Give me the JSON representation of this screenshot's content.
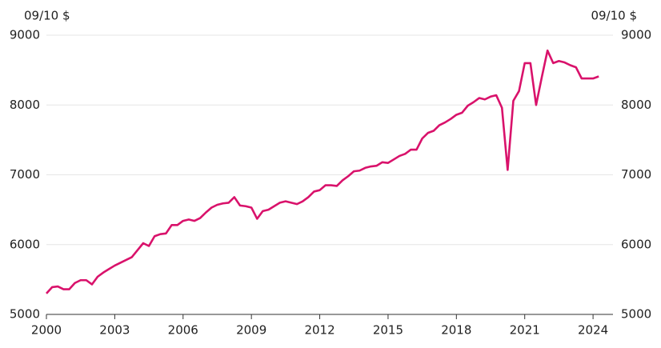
{
  "chart_data": {
    "type": "line",
    "ylabel": "09/10 $",
    "y2label": "09/10 $",
    "x": [
      2000,
      2000.25,
      2000.5,
      2000.75,
      2001,
      2001.25,
      2001.5,
      2001.75,
      2002,
      2002.25,
      2002.5,
      2002.75,
      2003,
      2003.25,
      2003.5,
      2003.75,
      2004,
      2004.25,
      2004.5,
      2004.75,
      2005,
      2005.25,
      2005.5,
      2005.75,
      2006,
      2006.25,
      2006.5,
      2006.75,
      2007,
      2007.25,
      2007.5,
      2007.75,
      2008,
      2008.25,
      2008.5,
      2008.75,
      2009,
      2009.25,
      2009.5,
      2009.75,
      2010,
      2010.25,
      2010.5,
      2010.75,
      2011,
      2011.25,
      2011.5,
      2011.75,
      2012,
      2012.25,
      2012.5,
      2012.75,
      2013,
      2013.25,
      2013.5,
      2013.75,
      2014,
      2014.25,
      2014.5,
      2014.75,
      2015,
      2015.25,
      2015.5,
      2015.75,
      2016,
      2016.25,
      2016.5,
      2016.75,
      2017,
      2017.25,
      2017.5,
      2017.75,
      2018,
      2018.25,
      2018.5,
      2018.75,
      2019,
      2019.25,
      2019.5,
      2019.75,
      2020,
      2020.25,
      2020.5,
      2020.75,
      2021,
      2021.25,
      2021.5,
      2021.75,
      2022,
      2022.25,
      2022.5,
      2022.75,
      2023,
      2023.25,
      2023.5,
      2023.75,
      2024,
      2024.25
    ],
    "series": [
      {
        "color": "#d9126b",
        "values": [
          5300,
          5390,
          5400,
          5360,
          5360,
          5450,
          5490,
          5490,
          5430,
          5540,
          5600,
          5650,
          5700,
          5740,
          5780,
          5820,
          5920,
          6020,
          5980,
          6120,
          6150,
          6160,
          6280,
          6280,
          6340,
          6360,
          6340,
          6380,
          6460,
          6530,
          6570,
          6590,
          6600,
          6680,
          6560,
          6550,
          6530,
          6370,
          6480,
          6500,
          6550,
          6600,
          6620,
          6600,
          6580,
          6620,
          6680,
          6760,
          6780,
          6850,
          6850,
          6840,
          6920,
          6980,
          7050,
          7060,
          7100,
          7120,
          7130,
          7180,
          7170,
          7220,
          7270,
          7300,
          7360,
          7360,
          7520,
          7600,
          7630,
          7710,
          7750,
          7800,
          7860,
          7890,
          7990,
          8040,
          8100,
          8080,
          8120,
          8140,
          7960,
          7070,
          8060,
          8200,
          8600,
          8600,
          8000,
          8400,
          8780,
          8600,
          8630,
          8610,
          8570,
          8540,
          8380,
          8380,
          8380,
          8410
        ]
      }
    ],
    "xlim": [
      2000,
      2024.875
    ],
    "xticks": [
      2000,
      2003,
      2006,
      2009,
      2012,
      2015,
      2018,
      2021,
      2024
    ],
    "ylim": [
      5000,
      9000
    ],
    "yticks": [
      5000,
      6000,
      7000,
      8000,
      9000
    ],
    "y2lim": [
      5000,
      9000
    ],
    "y2ticks": [
      5000,
      6000,
      7000,
      8000,
      9000
    ],
    "grid": true
  }
}
